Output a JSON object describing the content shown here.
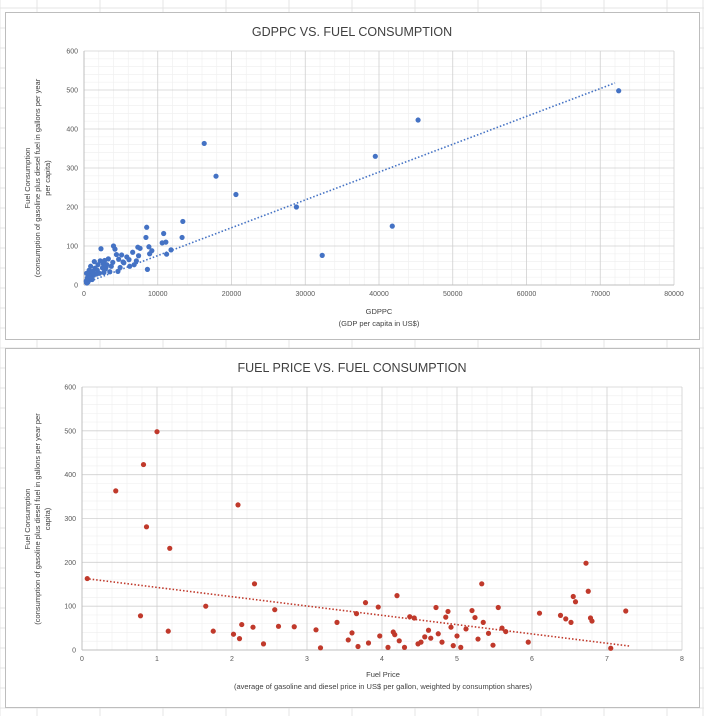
{
  "chart_data": [
    {
      "type": "scatter",
      "title": "GDPPC VS. FUEL CONSUMPTION",
      "xlabel": "GDPPC",
      "xlabel_sub": "(GDP per capita in US$)",
      "ylabel": "Fuel Consumption",
      "ylabel_sub_1": "(consumption of gasoline plus diesel fuel in gallons per year",
      "ylabel_sub_2": "per capita)",
      "xlim": [
        0,
        80000
      ],
      "ylim": [
        0,
        600
      ],
      "x_ticks": [
        "0",
        "10000",
        "20000",
        "30000",
        "40000",
        "50000",
        "60000",
        "70000",
        "80000"
      ],
      "y_ticks": [
        "0",
        "100",
        "200",
        "300",
        "400",
        "500",
        "600"
      ],
      "grid": true,
      "marker_color": "#4472c4",
      "trendline": {
        "type": "linear",
        "x": [
          0,
          72000
        ],
        "y": [
          4,
          518
        ],
        "color": "#4472c4"
      },
      "points": [
        [
          72500,
          498
        ],
        [
          45300,
          423
        ],
        [
          39500,
          330
        ],
        [
          16300,
          363
        ],
        [
          17900,
          279
        ],
        [
          20600,
          232
        ],
        [
          28800,
          200
        ],
        [
          41800,
          151
        ],
        [
          32300,
          76
        ],
        [
          13400,
          163
        ],
        [
          13300,
          122
        ],
        [
          10800,
          132
        ],
        [
          10600,
          108
        ],
        [
          11100,
          110
        ],
        [
          11200,
          79
        ],
        [
          11800,
          90
        ],
        [
          8500,
          148
        ],
        [
          8400,
          122
        ],
        [
          8800,
          98
        ],
        [
          9200,
          88
        ],
        [
          8900,
          80
        ],
        [
          8600,
          40
        ],
        [
          7300,
          97
        ],
        [
          7600,
          94
        ],
        [
          7400,
          75
        ],
        [
          7100,
          62
        ],
        [
          6600,
          84
        ],
        [
          6100,
          65
        ],
        [
          6200,
          48
        ],
        [
          5800,
          72
        ],
        [
          5400,
          57
        ],
        [
          5100,
          77
        ],
        [
          4900,
          45
        ],
        [
          4700,
          66
        ],
        [
          4400,
          78
        ],
        [
          4200,
          92
        ],
        [
          4000,
          100
        ],
        [
          3900,
          58
        ],
        [
          3700,
          48
        ],
        [
          3500,
          34
        ],
        [
          3300,
          67
        ],
        [
          3100,
          52
        ],
        [
          2900,
          41
        ],
        [
          2800,
          63
        ],
        [
          2600,
          55
        ],
        [
          2500,
          44
        ],
        [
          2300,
          93
        ],
        [
          2200,
          62
        ],
        [
          2100,
          30
        ],
        [
          1900,
          52
        ],
        [
          1800,
          38
        ],
        [
          1700,
          28
        ],
        [
          1500,
          43
        ],
        [
          1400,
          60
        ],
        [
          1300,
          25
        ],
        [
          1200,
          35
        ],
        [
          1100,
          14
        ],
        [
          1000,
          30
        ],
        [
          900,
          48
        ],
        [
          850,
          22
        ],
        [
          800,
          20
        ],
        [
          700,
          38
        ],
        [
          650,
          12
        ],
        [
          600,
          25
        ],
        [
          550,
          8
        ],
        [
          450,
          18
        ],
        [
          400,
          5
        ],
        [
          350,
          30
        ],
        [
          300,
          10
        ],
        [
          2700,
          32
        ],
        [
          3000,
          46
        ],
        [
          4600,
          35
        ],
        [
          5300,
          59
        ],
        [
          6800,
          52
        ]
      ]
    },
    {
      "type": "scatter",
      "title": "FUEL PRICE VS. FUEL CONSUMPTION",
      "xlabel": "Fuel Price",
      "xlabel_sub": "(average of gasoline and diesel price in US$ per gallon, weighted by consumption shares)",
      "ylabel": "Fuel Consumption",
      "ylabel_sub_1": "(consumption of gasoline plus diesel fuel in gallons per year per",
      "ylabel_sub_2": "capita)",
      "xlim": [
        0,
        8
      ],
      "ylim": [
        0,
        600
      ],
      "x_ticks": [
        "0",
        "1",
        "2",
        "3",
        "4",
        "5",
        "6",
        "7",
        "8"
      ],
      "y_ticks": [
        "0",
        "100",
        "200",
        "300",
        "400",
        "500",
        "600"
      ],
      "grid": true,
      "marker_color": "#c0392b",
      "trendline": {
        "type": "linear",
        "x": [
          0.05,
          7.3
        ],
        "y": [
          163,
          9
        ],
        "color": "#c0392b"
      },
      "points": [
        [
          1.0,
          498
        ],
        [
          0.82,
          423
        ],
        [
          0.45,
          363
        ],
        [
          0.86,
          281
        ],
        [
          1.17,
          232
        ],
        [
          2.08,
          331
        ],
        [
          0.07,
          163
        ],
        [
          0.78,
          78
        ],
        [
          1.15,
          43
        ],
        [
          1.65,
          100
        ],
        [
          1.75,
          43
        ],
        [
          2.02,
          36
        ],
        [
          2.13,
          58
        ],
        [
          2.1,
          26
        ],
        [
          2.3,
          151
        ],
        [
          2.28,
          52
        ],
        [
          2.42,
          14
        ],
        [
          2.57,
          92
        ],
        [
          2.62,
          54
        ],
        [
          2.83,
          53
        ],
        [
          3.12,
          46
        ],
        [
          3.18,
          5
        ],
        [
          3.4,
          63
        ],
        [
          3.55,
          23
        ],
        [
          3.6,
          39
        ],
        [
          3.66,
          83
        ],
        [
          3.68,
          8
        ],
        [
          3.78,
          108
        ],
        [
          3.82,
          16
        ],
        [
          3.95,
          98
        ],
        [
          3.97,
          32
        ],
        [
          4.08,
          6
        ],
        [
          4.15,
          41
        ],
        [
          4.17,
          35
        ],
        [
          4.2,
          124
        ],
        [
          4.23,
          21
        ],
        [
          4.3,
          6
        ],
        [
          4.37,
          76
        ],
        [
          4.43,
          73
        ],
        [
          4.48,
          14
        ],
        [
          4.52,
          18
        ],
        [
          4.57,
          30
        ],
        [
          4.62,
          45
        ],
        [
          4.65,
          27
        ],
        [
          4.72,
          97
        ],
        [
          4.75,
          37
        ],
        [
          4.8,
          18
        ],
        [
          4.85,
          75
        ],
        [
          4.88,
          88
        ],
        [
          4.92,
          52
        ],
        [
          4.95,
          10
        ],
        [
          5.0,
          32
        ],
        [
          5.05,
          6
        ],
        [
          5.12,
          48
        ],
        [
          5.2,
          90
        ],
        [
          5.24,
          74
        ],
        [
          5.28,
          25
        ],
        [
          5.33,
          151
        ],
        [
          5.35,
          63
        ],
        [
          5.42,
          38
        ],
        [
          5.48,
          11
        ],
        [
          5.55,
          97
        ],
        [
          5.6,
          50
        ],
        [
          5.65,
          42
        ],
        [
          5.95,
          18
        ],
        [
          6.1,
          84
        ],
        [
          6.38,
          79
        ],
        [
          6.45,
          71
        ],
        [
          6.52,
          63
        ],
        [
          6.55,
          122
        ],
        [
          6.58,
          110
        ],
        [
          6.72,
          198
        ],
        [
          6.75,
          134
        ],
        [
          6.78,
          73
        ],
        [
          6.8,
          66
        ],
        [
          7.05,
          4
        ],
        [
          7.25,
          89
        ]
      ]
    }
  ]
}
